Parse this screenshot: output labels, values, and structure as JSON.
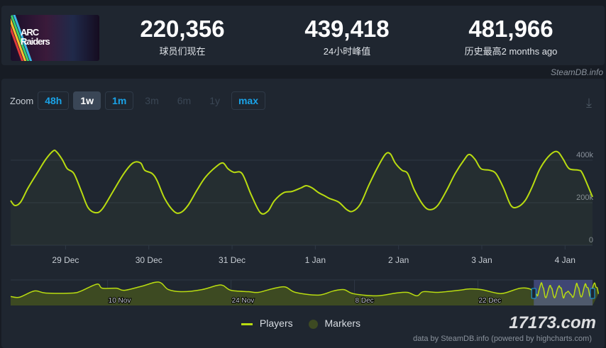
{
  "header": {
    "game_title": "ARC Raiders",
    "stats": [
      {
        "value": "220,356",
        "label": "球员们现在"
      },
      {
        "value": "439,418",
        "label": "24小时峰值"
      },
      {
        "value": "481,966",
        "label": "历史最高2 months ago"
      }
    ]
  },
  "credit": "SteamDB.info",
  "zoom": {
    "label": "Zoom",
    "buttons": [
      {
        "label": "48h",
        "state": "on"
      },
      {
        "label": "1w",
        "state": "sel"
      },
      {
        "label": "1m",
        "state": "on"
      },
      {
        "label": "3m",
        "state": "off"
      },
      {
        "label": "6m",
        "state": "off"
      },
      {
        "label": "1y",
        "state": "off"
      },
      {
        "label": "max",
        "state": "on"
      }
    ]
  },
  "download_icon": "download-icon",
  "legend": {
    "players": "Players",
    "markers": "Markers"
  },
  "footer": "data by SteamDB.info (powered by highcharts.com)",
  "watermark": "17173.com",
  "colors": {
    "line": "#b9dc10",
    "marker": "#3d4a22"
  },
  "chart_data": {
    "type": "line",
    "series_name": "Players",
    "x_unit": "days since 29 Dec",
    "y_unit": "thousands",
    "xticks": [
      {
        "x": 0,
        "label": "29 Dec"
      },
      {
        "x": 1,
        "label": "30 Dec"
      },
      {
        "x": 2,
        "label": "31 Dec"
      },
      {
        "x": 3,
        "label": "1 Jan"
      },
      {
        "x": 4,
        "label": "2 Jan"
      },
      {
        "x": 5,
        "label": "3 Jan"
      },
      {
        "x": 6,
        "label": "4 Jan"
      }
    ],
    "yticks": [
      {
        "y": 0,
        "label": "0"
      },
      {
        "y": 200,
        "label": "200k"
      },
      {
        "y": 400,
        "label": "400k"
      }
    ],
    "xlim": [
      -0.66,
      6.33
    ],
    "ylim": [
      0,
      600
    ],
    "points": [
      [
        -0.66,
        210
      ],
      [
        -0.61,
        187
      ],
      [
        -0.54,
        203
      ],
      [
        -0.45,
        270
      ],
      [
        -0.32,
        353
      ],
      [
        -0.24,
        403
      ],
      [
        -0.15,
        443
      ],
      [
        -0.11,
        440
      ],
      [
        -0.04,
        403
      ],
      [
        0.02,
        360
      ],
      [
        0.1,
        337
      ],
      [
        0.19,
        253
      ],
      [
        0.27,
        177
      ],
      [
        0.36,
        153
      ],
      [
        0.44,
        170
      ],
      [
        0.57,
        253
      ],
      [
        0.7,
        337
      ],
      [
        0.81,
        387
      ],
      [
        0.9,
        387
      ],
      [
        0.95,
        353
      ],
      [
        1.04,
        337
      ],
      [
        1.1,
        303
      ],
      [
        1.19,
        220
      ],
      [
        1.3,
        160
      ],
      [
        1.38,
        153
      ],
      [
        1.47,
        187
      ],
      [
        1.58,
        260
      ],
      [
        1.68,
        320
      ],
      [
        1.81,
        370
      ],
      [
        1.89,
        387
      ],
      [
        1.95,
        360
      ],
      [
        2.02,
        343
      ],
      [
        2.12,
        337
      ],
      [
        2.23,
        237
      ],
      [
        2.34,
        153
      ],
      [
        2.43,
        160
      ],
      [
        2.51,
        210
      ],
      [
        2.62,
        247
      ],
      [
        2.72,
        253
      ],
      [
        2.83,
        270
      ],
      [
        2.89,
        280
      ],
      [
        2.96,
        270
      ],
      [
        3.04,
        247
      ],
      [
        3.11,
        233
      ],
      [
        3.17,
        220
      ],
      [
        3.28,
        203
      ],
      [
        3.38,
        167
      ],
      [
        3.45,
        160
      ],
      [
        3.54,
        193
      ],
      [
        3.64,
        280
      ],
      [
        3.74,
        360
      ],
      [
        3.84,
        427
      ],
      [
        3.9,
        430
      ],
      [
        3.96,
        387
      ],
      [
        4.04,
        353
      ],
      [
        4.11,
        337
      ],
      [
        4.19,
        260
      ],
      [
        4.3,
        187
      ],
      [
        4.38,
        167
      ],
      [
        4.47,
        187
      ],
      [
        4.58,
        260
      ],
      [
        4.68,
        337
      ],
      [
        4.79,
        403
      ],
      [
        4.85,
        427
      ],
      [
        4.92,
        403
      ],
      [
        4.99,
        360
      ],
      [
        5.09,
        353
      ],
      [
        5.17,
        337
      ],
      [
        5.26,
        270
      ],
      [
        5.35,
        187
      ],
      [
        5.43,
        180
      ],
      [
        5.52,
        210
      ],
      [
        5.6,
        270
      ],
      [
        5.69,
        353
      ],
      [
        5.77,
        403
      ],
      [
        5.86,
        437
      ],
      [
        5.92,
        437
      ],
      [
        5.98,
        403
      ],
      [
        6.05,
        360
      ],
      [
        6.16,
        353
      ],
      [
        6.21,
        337
      ],
      [
        6.33,
        227
      ]
    ],
    "navigator": {
      "x_unit": "days since 30 Oct",
      "xlim": [
        0,
        66
      ],
      "ylim": [
        0,
        500
      ],
      "xticks": [
        {
          "x": 11,
          "label": "10 Nov"
        },
        {
          "x": 25,
          "label": "24 Nov"
        },
        {
          "x": 39,
          "label": "8 Dec"
        },
        {
          "x": 53,
          "label": "22 Dec"
        }
      ],
      "selection": [
        59.34,
        66
      ],
      "points": [
        [
          0,
          176
        ],
        [
          1,
          162
        ],
        [
          2.7,
          284
        ],
        [
          4,
          243
        ],
        [
          7,
          243
        ],
        [
          8,
          284
        ],
        [
          9.8,
          419
        ],
        [
          10.4,
          338
        ],
        [
          12,
          338
        ],
        [
          12.9,
          297
        ],
        [
          14.9,
          378
        ],
        [
          16.8,
          459
        ],
        [
          17.9,
          311
        ],
        [
          19.5,
          270
        ],
        [
          21.7,
          311
        ],
        [
          23.4,
          392
        ],
        [
          24.1,
          392
        ],
        [
          25,
          297
        ],
        [
          27,
          270
        ],
        [
          28.1,
          257
        ],
        [
          29.6,
          324
        ],
        [
          31.1,
          365
        ],
        [
          32.3,
          257
        ],
        [
          34.9,
          203
        ],
        [
          36.6,
          284
        ],
        [
          37.8,
          311
        ],
        [
          38.9,
          230
        ],
        [
          41.5,
          189
        ],
        [
          43.7,
          243
        ],
        [
          45,
          257
        ],
        [
          46.1,
          189
        ],
        [
          46.8,
          270
        ],
        [
          48.5,
          257
        ],
        [
          50.8,
          297
        ],
        [
          52.1,
          324
        ],
        [
          53.4,
          311
        ],
        [
          55.1,
          243
        ],
        [
          56,
          243
        ],
        [
          57.8,
          338
        ],
        [
          58.9,
          324
        ]
      ]
    }
  }
}
